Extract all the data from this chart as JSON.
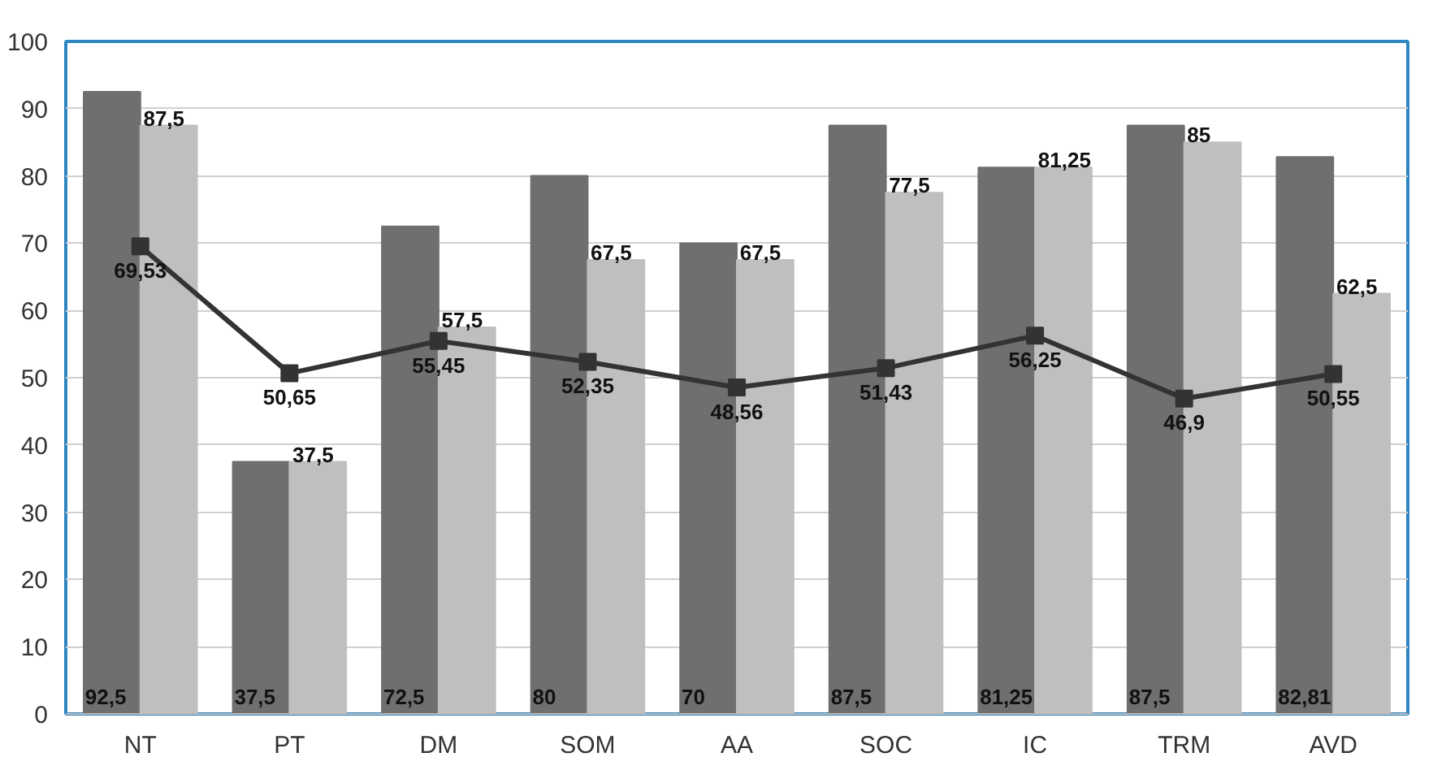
{
  "chart_data": {
    "type": "bar",
    "categories": [
      "NT",
      "PT",
      "DM",
      "SOM",
      "AA",
      "SOC",
      "IC",
      "TRM",
      "AVD"
    ],
    "ylim": [
      0,
      100
    ],
    "yticks": [
      0,
      10,
      20,
      30,
      40,
      50,
      60,
      70,
      80,
      90,
      100
    ],
    "grid": "y",
    "series": [
      {
        "color": "#6f6f6f",
        "values": [
          92.5,
          37.5,
          72.5,
          80,
          70,
          87.5,
          81.25,
          87.5,
          82.81
        ],
        "value_labels": [
          "92,5",
          "37,5",
          "72,5",
          "80",
          "70",
          "87,5",
          "81,25",
          "87,5",
          "82,81"
        ]
      },
      {
        "color": "#bfbfbf",
        "values": [
          87.5,
          37.5,
          57.5,
          67.5,
          67.5,
          77.5,
          81.25,
          85,
          62.5
        ],
        "value_labels": [
          "87,5",
          "37,5",
          "57,5",
          "67,5",
          "67,5",
          "77,5",
          "81,25",
          "85",
          "62,5"
        ]
      },
      {
        "type": "line",
        "color": "#333333",
        "marker": "square",
        "line_style": "solid",
        "values": [
          69.53,
          50.65,
          55.45,
          52.35,
          48.56,
          51.43,
          56.25,
          46.9,
          50.55
        ],
        "value_labels": [
          "69,53",
          "50,65",
          "55,45",
          "52,35",
          "48,56",
          "51,43",
          "56,25",
          "46,9",
          "50,55"
        ]
      }
    ]
  }
}
